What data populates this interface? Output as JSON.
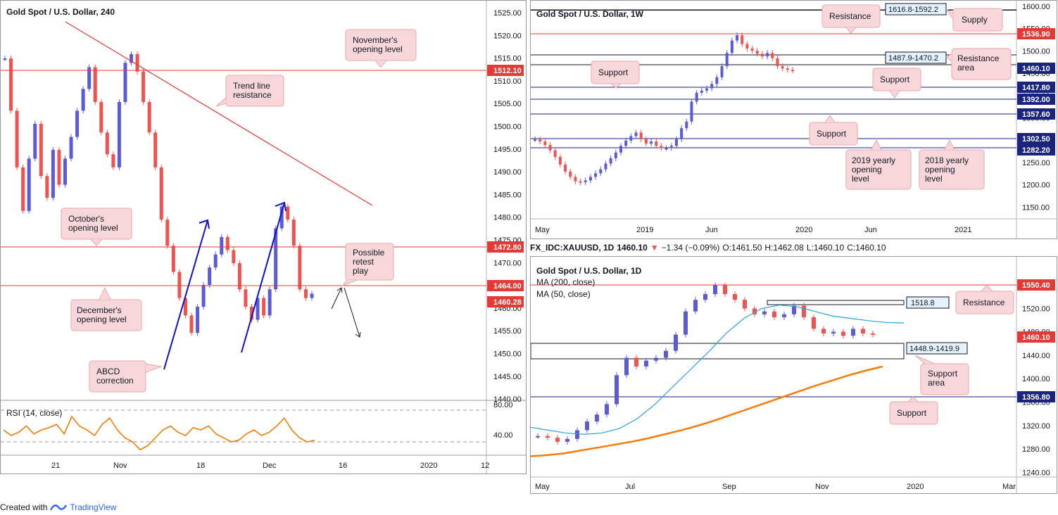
{
  "footer": {
    "created_with": "Created with",
    "brand": "TradingView"
  },
  "colors": {
    "up": "#5b5bd6",
    "down": "#ef5350",
    "resistance_line": "#e53935",
    "support_line": "#1a237e",
    "rsi": "#f57c00",
    "ma50": "#29a3dc",
    "ma200": "#f57c00",
    "note_bg": "#f8d7da",
    "note_border": "#e8a7ad",
    "arrow_blue": "#1010d0"
  },
  "left": {
    "title": "Gold Spot / U.S. Dollar, 240",
    "y_ticks": [
      "1525.00",
      "1520.00",
      "1515.00",
      "1510.00",
      "1505.00",
      "1500.00",
      "1495.00",
      "1490.00",
      "1485.00",
      "1480.00",
      "1475.00",
      "1470.00",
      "1465.00",
      "1460.00",
      "1455.00",
      "1450.00",
      "1445.00",
      "1440.00"
    ],
    "x_ticks": [
      "21",
      "Nov",
      "18",
      "Dec",
      "16",
      "2020",
      "12"
    ],
    "price_tags": [
      {
        "label": "1512.10",
        "color": "#e53935"
      },
      {
        "label": "1472.80",
        "color": "#e53935"
      },
      {
        "label": "1464.00",
        "color": "#e53935"
      },
      {
        "label": "1460.28",
        "color": "#e53935"
      }
    ],
    "notes": {
      "november": "November's opening level",
      "trend": "Trend line resistance",
      "october": "October's opening level",
      "december": "December's opening level",
      "abcd": "ABCD correction",
      "retest": "Possible retest play"
    },
    "rsi": {
      "label": "RSI (14, close)",
      "ticks": [
        "80.00",
        "40.00"
      ]
    }
  },
  "weekly": {
    "title": "Gold Spot / U.S. Dollar, 1W",
    "y_ticks": [
      "1600.00",
      "1550.00",
      "1500.00",
      "1450.00",
      "1400.00",
      "1350.00",
      "1300.00",
      "1250.00",
      "1200.00",
      "1150.00"
    ],
    "x_ticks": [
      "May",
      "2019",
      "Jun",
      "2020",
      "Jun",
      "2021"
    ],
    "price_tags": [
      {
        "label": "1536.90",
        "color": "#e53935"
      },
      {
        "label": "1460.10",
        "color": "#1a237e"
      },
      {
        "label": "1417.80",
        "color": "#1a237e"
      },
      {
        "label": "1392.00",
        "color": "#1a237e"
      },
      {
        "label": "1357.60",
        "color": "#1a237e"
      },
      {
        "label": "1302.50",
        "color": "#1a237e"
      },
      {
        "label": "1282.20",
        "color": "#1a237e"
      }
    ],
    "zones": {
      "supply": "1616.8-1592.2",
      "res_area": "1487.9-1470.2"
    },
    "notes": {
      "resistance": "Resistance",
      "supply": "Supply",
      "resistance_area": "Resistance area",
      "support1": "Support",
      "support2": "Support",
      "support3": "Support",
      "yearly2019": "2019 yearly opening level",
      "yearly2018": "2018 yearly opening level"
    }
  },
  "daily": {
    "header": {
      "symbol": "FX_IDC:XAUUSD, 1D",
      "price": "1460.10",
      "change": "−1.34 (−0.09%)",
      "o": "O:1461.50",
      "h": "H:1462.08",
      "l": "L:1460.10",
      "c": "C:1460.10"
    },
    "title": "Gold Spot / U.S. Dollar, 1D",
    "ma200": "MA (200, close)",
    "ma50": "MA (50, close)",
    "y_ticks": [
      "1560.00",
      "1520.00",
      "1480.00",
      "1440.00",
      "1400.00",
      "1360.00",
      "1320.00",
      "1280.00",
      "1240.00"
    ],
    "x_ticks": [
      "May",
      "Jul",
      "Sep",
      "Nov",
      "2020",
      "Mar"
    ],
    "price_tags": [
      {
        "label": "1550.40",
        "color": "#e53935"
      },
      {
        "label": "1460.10",
        "color": "#e53935"
      },
      {
        "label": "1356.80",
        "color": "#1a237e"
      }
    ],
    "zones": {
      "top": "1518.8",
      "area": "1448.9-1419.9"
    },
    "notes": {
      "resistance": "Resistance",
      "support_area": "Support area",
      "support": "Support"
    }
  },
  "chart_data": [
    {
      "type": "line",
      "title": "Gold Spot / U.S. Dollar, 240",
      "ylim": [
        1437,
        1526
      ],
      "levels": [
        1512.1,
        1472.8,
        1464.0
      ],
      "last": 1460.28,
      "series": [
        {
          "values": [
            1515,
            1503,
            1490,
            1480,
            1492,
            1500,
            1488,
            1483,
            1494,
            1486,
            1492,
            1497,
            1503,
            1508,
            1513,
            1505,
            1498,
            1493,
            1490,
            1505,
            1514,
            1516,
            1512,
            1505,
            1498,
            1490,
            1478,
            1472,
            1466,
            1460,
            1456,
            1452,
            1458,
            1463,
            1467,
            1470,
            1474,
            1471,
            1468,
            1462,
            1458,
            1455,
            1460,
            1456,
            1462,
            1476,
            1481,
            1478,
            1472,
            1462,
            1460,
            1461
          ]
        }
      ]
    },
    {
      "type": "line",
      "title": "Gold Spot / U.S. Dollar, 1W",
      "ylim": [
        1130,
        1610
      ],
      "levels": [
        1536.9,
        1417.8,
        1392.0,
        1357.6,
        1302.5,
        1282.2
      ],
      "zones": [
        [
          1592.2,
          1616.8
        ],
        [
          1470.2,
          1487.9
        ]
      ],
      "last": 1460.1,
      "series": [
        {
          "values": [
            1305,
            1300,
            1292,
            1280,
            1265,
            1248,
            1232,
            1220,
            1210,
            1208,
            1212,
            1220,
            1228,
            1237,
            1250,
            1262,
            1275,
            1290,
            1302,
            1312,
            1320,
            1305,
            1295,
            1300,
            1290,
            1285,
            1285,
            1290,
            1305,
            1330,
            1345,
            1390,
            1410,
            1415,
            1420,
            1430,
            1445,
            1470,
            1500,
            1528,
            1540,
            1520,
            1510,
            1505,
            1498,
            1492,
            1500,
            1488,
            1470,
            1465,
            1462,
            1460
          ]
        }
      ]
    },
    {
      "type": "line",
      "title": "Gold Spot / U.S. Dollar, 1D",
      "ylim": [
        1230,
        1570
      ],
      "levels": [
        1550.4,
        1356.8
      ],
      "zones": [
        [
          1516.0,
          1519.5
        ],
        [
          1419.9,
          1448.9
        ]
      ],
      "last": 1460.1,
      "series": [
        {
          "name": "MA (200, close)",
          "values": [
            1250,
            1252,
            1255,
            1260,
            1265,
            1270,
            1275,
            1281,
            1288,
            1295,
            1303,
            1312,
            1322,
            1332,
            1342,
            1352,
            1362,
            1372,
            1381,
            1390,
            1398,
            1405
          ]
        },
        {
          "name": "MA (50, close)",
          "values": [
            1300,
            1295,
            1290,
            1288,
            1290,
            1298,
            1315,
            1340,
            1370,
            1400,
            1430,
            1462,
            1488,
            1505,
            1511,
            1508,
            1500,
            1492,
            1488,
            1484,
            1481,
            1480
          ]
        },
        {
          "values": [
            1285,
            1282,
            1275,
            1280,
            1295,
            1310,
            1322,
            1340,
            1390,
            1420,
            1405,
            1415,
            1420,
            1432,
            1460,
            1500,
            1520,
            1530,
            1545,
            1530,
            1520,
            1505,
            1495,
            1500,
            1490,
            1495,
            1510,
            1490,
            1470,
            1462,
            1465,
            1458,
            1470,
            1462,
            1460
          ]
        }
      ]
    }
  ]
}
